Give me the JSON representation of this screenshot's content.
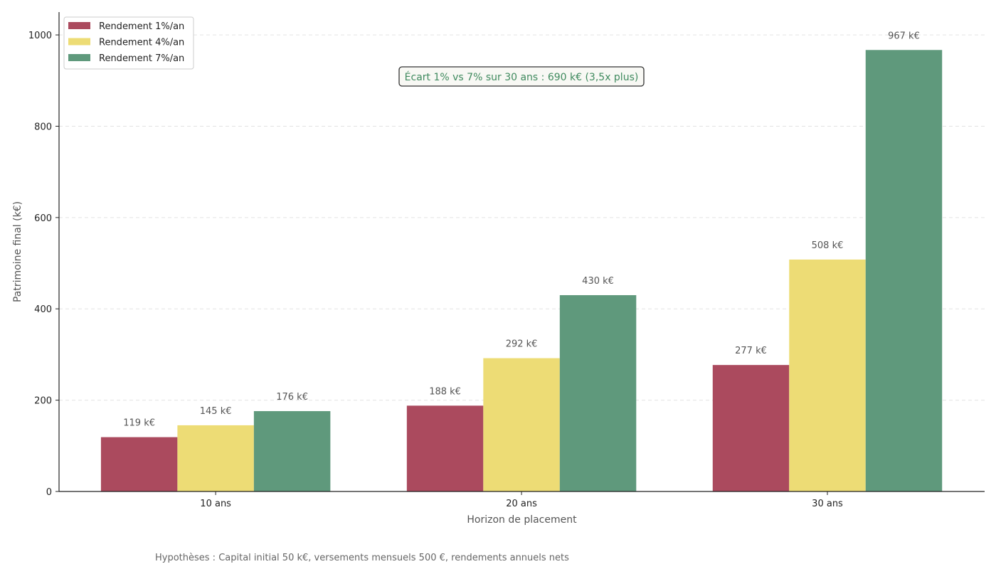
{
  "chart_data": {
    "type": "bar",
    "categories": [
      "10 ans",
      "20 ans",
      "30 ans"
    ],
    "series": [
      {
        "name": "Rendement 1%/an",
        "color": "#ab4a5e",
        "values": [
          119,
          188,
          277
        ],
        "labels": [
          "119 k€",
          "188 k€",
          "277 k€"
        ]
      },
      {
        "name": "Rendement 4%/an",
        "color": "#eddc75",
        "values": [
          145,
          292,
          508
        ],
        "labels": [
          "145 k€",
          "292 k€",
          "508 k€"
        ]
      },
      {
        "name": "Rendement 7%/an",
        "color": "#5f997c",
        "values": [
          176,
          430,
          967
        ],
        "labels": [
          "176 k€",
          "430 k€",
          "967 k€"
        ]
      }
    ],
    "xlabel": "Horizon de placement",
    "ylabel": "Patrimoine final (k€)",
    "ylim": [
      0,
      1050
    ],
    "yticks": [
      0,
      200,
      400,
      600,
      800,
      1000
    ],
    "grid": "y-dashed",
    "legend": "top-left",
    "annotation": {
      "text": "Écart 1% vs 7% sur 30 ans : 690 k€ (3,5x plus)",
      "color": "#3f8a5e"
    },
    "footnote": "Hypothèses : Capital initial 50 k€, versements mensuels 500 €, rendements annuels nets"
  }
}
